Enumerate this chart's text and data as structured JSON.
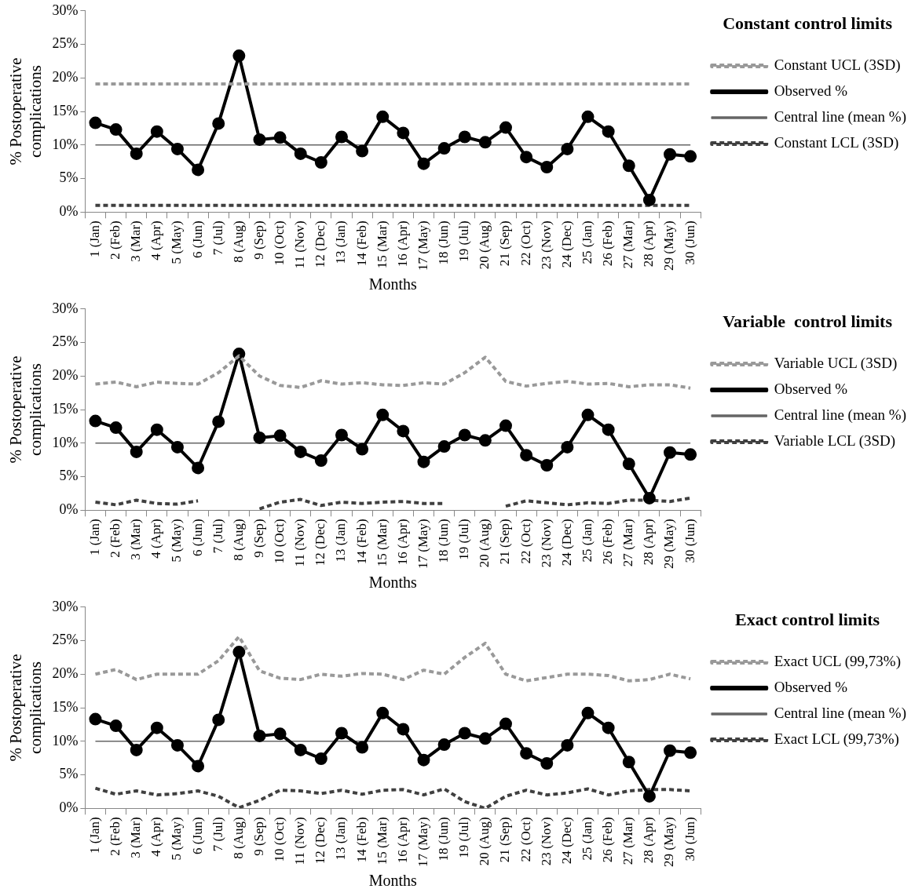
{
  "chart_data": [
    {
      "type": "line",
      "legend_title": "Constant control limits",
      "xlabel": "Months",
      "ylabel": "% Postoperative complications",
      "legend": "right",
      "grid": false,
      "categories": [
        "1 (Jan)",
        "2 (Feb)",
        "3 (Mar)",
        "4 (Apr)",
        "5 (May)",
        "6 (Jun)",
        "7 (Jul)",
        "8 (Aug)",
        "9 (Sep)",
        "10 (Oct)",
        "11 (Nov)",
        "12 (Dec)",
        "13 (Jan)",
        "14 (Feb)",
        "15 (Mar)",
        "16 (Apr)",
        "17 (May)",
        "18 (Jun)",
        "19 (Jul)",
        "20 (Aug)",
        "21 (Sep)",
        "22 (Oct)",
        "23 (Nov)",
        "24 (Dec)",
        "25 (Jan)",
        "26 (Feb)",
        "27 (Mar)",
        "28 (Apr)",
        "29 (May)",
        "30 (Jun)"
      ],
      "ylim": [
        0,
        30
      ],
      "yticks": [
        {
          "value": 0,
          "label": "0%"
        },
        {
          "value": 5,
          "label": "5%"
        },
        {
          "value": 10,
          "label": "10%"
        },
        {
          "value": 15,
          "label": "15%"
        },
        {
          "value": 20,
          "label": "20%"
        },
        {
          "value": 25,
          "label": "25%"
        },
        {
          "value": 30,
          "label": "30%"
        }
      ],
      "series": [
        {
          "name": "Constant UCL (3SD)",
          "color": "#999999",
          "line_style": "dashed",
          "marker": "none",
          "values": [
            19.1,
            19.1,
            19.1,
            19.1,
            19.1,
            19.1,
            19.1,
            19.1,
            19.1,
            19.1,
            19.1,
            19.1,
            19.1,
            19.1,
            19.1,
            19.1,
            19.1,
            19.1,
            19.1,
            19.1,
            19.1,
            19.1,
            19.1,
            19.1,
            19.1,
            19.1,
            19.1,
            19.1,
            19.1,
            19.1
          ]
        },
        {
          "name": "Observed %",
          "color": "#000000",
          "line_style": "solid",
          "marker": "circle",
          "values": [
            13.3,
            12.3,
            8.7,
            12.0,
            9.4,
            6.3,
            13.2,
            23.3,
            10.8,
            11.1,
            8.7,
            7.4,
            11.2,
            9.1,
            14.2,
            11.8,
            7.2,
            9.5,
            11.2,
            10.4,
            12.6,
            8.2,
            6.7,
            9.4,
            14.2,
            12.0,
            6.9,
            1.8,
            8.6,
            8.3
          ]
        },
        {
          "name": "Central line (mean %)",
          "color": "#666666",
          "line_style": "solid",
          "marker": "none",
          "values": [
            10,
            10,
            10,
            10,
            10,
            10,
            10,
            10,
            10,
            10,
            10,
            10,
            10,
            10,
            10,
            10,
            10,
            10,
            10,
            10,
            10,
            10,
            10,
            10,
            10,
            10,
            10,
            10,
            10,
            10
          ]
        },
        {
          "name": "Constant LCL (3SD)",
          "color": "#404040",
          "line_style": "dashed",
          "marker": "none",
          "values": [
            1.0,
            1.0,
            1.0,
            1.0,
            1.0,
            1.0,
            1.0,
            1.0,
            1.0,
            1.0,
            1.0,
            1.0,
            1.0,
            1.0,
            1.0,
            1.0,
            1.0,
            1.0,
            1.0,
            1.0,
            1.0,
            1.0,
            1.0,
            1.0,
            1.0,
            1.0,
            1.0,
            1.0,
            1.0,
            1.0
          ]
        }
      ]
    },
    {
      "type": "line",
      "legend_title": "Variable  control limits",
      "xlabel": "Months",
      "ylabel": "% Postoperative complications",
      "legend": "right",
      "grid": false,
      "categories": [
        "1 (Jan)",
        "2 (Feb)",
        "3 (Mar)",
        "4 (Apr)",
        "5 (May)",
        "6 (Jun)",
        "7 (Jul)",
        "8 (Aug)",
        "9 (Sep)",
        "10 (Oct)",
        "11 (Nov)",
        "12 (Dec)",
        "13 (Jan)",
        "14 (Feb)",
        "15 (Mar)",
        "16 (Apr)",
        "17 (May)",
        "18 (Jun)",
        "19 (Jul)",
        "20 (Aug)",
        "21 (Sep)",
        "22 (Oct)",
        "23 (Nov)",
        "24 (Dec)",
        "25 (Jan)",
        "26 (Feb)",
        "27 (Mar)",
        "28 (Apr)",
        "29 (May)",
        "30 (Jun)"
      ],
      "ylim": [
        0,
        30
      ],
      "yticks": [
        {
          "value": 0,
          "label": "0%"
        },
        {
          "value": 5,
          "label": "5%"
        },
        {
          "value": 10,
          "label": "10%"
        },
        {
          "value": 15,
          "label": "15%"
        },
        {
          "value": 20,
          "label": "20%"
        },
        {
          "value": 25,
          "label": "25%"
        },
        {
          "value": 30,
          "label": "30%"
        }
      ],
      "series": [
        {
          "name": "Variable UCL (3SD)",
          "color": "#999999",
          "line_style": "dashed",
          "marker": "none",
          "values": [
            18.8,
            19.1,
            18.4,
            19.1,
            18.9,
            18.8,
            20.5,
            23.0,
            20.0,
            18.6,
            18.3,
            19.3,
            18.8,
            19.0,
            18.7,
            18.6,
            19.0,
            18.8,
            20.5,
            22.8,
            19.2,
            18.5,
            18.9,
            19.2,
            18.8,
            18.9,
            18.4,
            18.7,
            18.7,
            18.2
          ]
        },
        {
          "name": "Observed %",
          "color": "#000000",
          "line_style": "solid",
          "marker": "circle",
          "values": [
            13.3,
            12.3,
            8.7,
            12.0,
            9.4,
            6.3,
            13.2,
            23.3,
            10.8,
            11.1,
            8.7,
            7.4,
            11.2,
            9.1,
            14.2,
            11.8,
            7.2,
            9.5,
            11.2,
            10.4,
            12.6,
            8.2,
            6.7,
            9.4,
            14.2,
            12.0,
            6.9,
            1.8,
            8.6,
            8.3
          ]
        },
        {
          "name": "Central line (mean %)",
          "color": "#666666",
          "line_style": "solid",
          "marker": "none",
          "values": [
            10,
            10,
            10,
            10,
            10,
            10,
            10,
            10,
            10,
            10,
            10,
            10,
            10,
            10,
            10,
            10,
            10,
            10,
            10,
            10,
            10,
            10,
            10,
            10,
            10,
            10,
            10,
            10,
            10,
            10
          ]
        },
        {
          "name": "Variable LCL (3SD)",
          "color": "#404040",
          "line_style": "dashed",
          "marker": "none",
          "values": [
            1.2,
            0.8,
            1.5,
            1.0,
            0.9,
            1.4,
            null,
            null,
            0.2,
            1.2,
            1.6,
            0.7,
            1.2,
            1.0,
            1.2,
            1.3,
            1.0,
            1.0,
            null,
            null,
            0.6,
            1.4,
            1.1,
            0.8,
            1.1,
            1.0,
            1.5,
            1.5,
            1.3,
            1.8
          ]
        }
      ]
    },
    {
      "type": "line",
      "legend_title": "Exact control limits",
      "xlabel": "Months",
      "ylabel": "% Postoperative complications",
      "legend": "right",
      "grid": false,
      "categories": [
        "1 (Jan)",
        "2 (Feb)",
        "3 (Mar)",
        "4 (Apr)",
        "5 (May)",
        "6 (Jun)",
        "7 (Jul)",
        "8 (Aug)",
        "9 (Sep)",
        "10 (Oct)",
        "11 (Nov)",
        "12 (Dec)",
        "13 (Jan)",
        "14 (Feb)",
        "15 (Mar)",
        "16 (Apr)",
        "17 (May)",
        "18 (Jun)",
        "19 (Jul)",
        "20 (Aug)",
        "21 (Sep)",
        "22 (Oct)",
        "23 (Nov)",
        "24 (Dec)",
        "25 (Jan)",
        "26 (Feb)",
        "27 (Mar)",
        "28 (Apr)",
        "29 (May)",
        "30 (Jun)"
      ],
      "ylim": [
        0,
        30
      ],
      "yticks": [
        {
          "value": 0,
          "label": "0%"
        },
        {
          "value": 5,
          "label": "5%"
        },
        {
          "value": 10,
          "label": "10%"
        },
        {
          "value": 15,
          "label": "15%"
        },
        {
          "value": 20,
          "label": "20%"
        },
        {
          "value": 25,
          "label": "25%"
        },
        {
          "value": 30,
          "label": "30%"
        }
      ],
      "series": [
        {
          "name": "Exact UCL (99,73%)",
          "color": "#999999",
          "line_style": "dashed",
          "marker": "none",
          "values": [
            20.0,
            20.7,
            19.2,
            20.0,
            20.0,
            20.0,
            22.0,
            25.6,
            20.5,
            19.4,
            19.2,
            20.0,
            19.7,
            20.1,
            20.0,
            19.2,
            20.6,
            20.0,
            22.5,
            24.6,
            20.0,
            19.0,
            19.5,
            20.0,
            20.0,
            19.8,
            19.0,
            19.2,
            20.0,
            19.3
          ]
        },
        {
          "name": "Observed %",
          "color": "#000000",
          "line_style": "solid",
          "marker": "circle",
          "values": [
            13.3,
            12.3,
            8.7,
            12.0,
            9.4,
            6.3,
            13.2,
            23.3,
            10.8,
            11.1,
            8.7,
            7.4,
            11.2,
            9.1,
            14.2,
            11.8,
            7.2,
            9.5,
            11.2,
            10.4,
            12.6,
            8.2,
            6.7,
            9.4,
            14.2,
            12.0,
            6.9,
            1.8,
            8.6,
            8.3
          ]
        },
        {
          "name": "Central line (mean %)",
          "color": "#666666",
          "line_style": "solid",
          "marker": "none",
          "values": [
            10,
            10,
            10,
            10,
            10,
            10,
            10,
            10,
            10,
            10,
            10,
            10,
            10,
            10,
            10,
            10,
            10,
            10,
            10,
            10,
            10,
            10,
            10,
            10,
            10,
            10,
            10,
            10,
            10,
            10
          ]
        },
        {
          "name": "Exact LCL (99,73%)",
          "color": "#404040",
          "line_style": "dashed",
          "marker": "none",
          "values": [
            3.0,
            2.1,
            2.6,
            2.0,
            2.2,
            2.6,
            1.8,
            0.1,
            1.2,
            2.7,
            2.6,
            2.2,
            2.7,
            2.1,
            2.7,
            2.8,
            2.0,
            2.9,
            1.0,
            0.0,
            1.8,
            2.7,
            2.0,
            2.3,
            2.9,
            2.0,
            2.6,
            2.8,
            2.8,
            2.6
          ]
        }
      ]
    }
  ]
}
